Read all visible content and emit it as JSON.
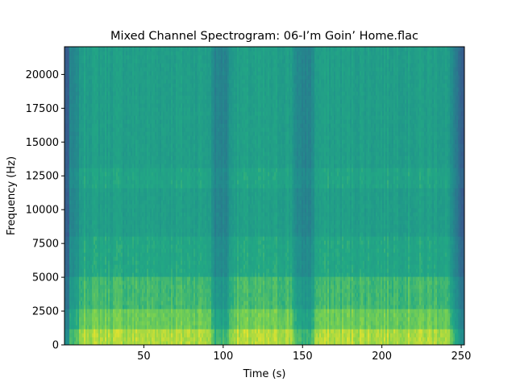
{
  "chart_data": {
    "type": "heatmap",
    "title": "Mixed Channel Spectrogram: 06-I’m Goin’ Home.flac",
    "xlabel": "Time (s)",
    "ylabel": "Frequency (Hz)",
    "xlim": [
      0,
      252
    ],
    "ylim": [
      0,
      22050
    ],
    "x_ticks": [
      50,
      100,
      150,
      200,
      250
    ],
    "y_ticks": [
      0,
      2500,
      5000,
      7500,
      10000,
      12500,
      15000,
      17500,
      20000
    ],
    "colormap": "viridis",
    "grid": false,
    "legend": "none",
    "description_of_energy": {
      "quiet_segments_s": [
        [
          0,
          7
        ],
        [
          95,
          102
        ],
        [
          147,
          155
        ],
        [
          245,
          252
        ]
      ],
      "loud_bands_hz": [
        [
          0,
          2500
        ]
      ],
      "moderate_band_hz": [
        [
          11500,
          13000
        ]
      ]
    }
  },
  "colors": {
    "background": "#ffffff",
    "axis": "#000000",
    "cmap_low": "#3b528b",
    "cmap_mid": "#21918c",
    "cmap_high": "#5ec962",
    "cmap_peak": "#c2df23"
  }
}
